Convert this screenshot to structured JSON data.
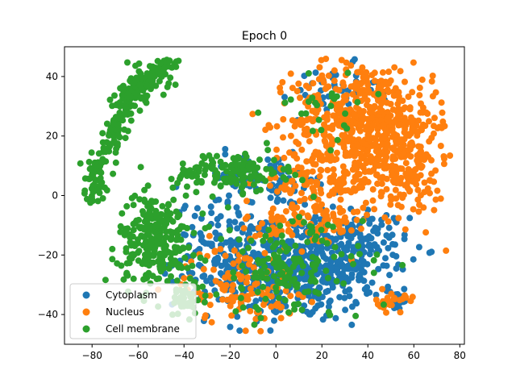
{
  "chart_data": {
    "type": "scatter",
    "title": "Epoch 0",
    "xlabel": "",
    "ylabel": "",
    "xlim": [
      -92,
      82
    ],
    "ylim": [
      -50,
      50
    ],
    "xticks": [
      -80,
      -60,
      -40,
      -20,
      0,
      20,
      40,
      60,
      80
    ],
    "yticks": [
      -40,
      -20,
      0,
      20,
      40
    ],
    "grid": false,
    "legend_position": "lower-left",
    "series": [
      {
        "name": "Cytoplasm",
        "color": "#1f77b4",
        "clusters": [
          {
            "cx": 10,
            "cy": -25,
            "rx": 30,
            "ry": 16,
            "n": 420
          },
          {
            "cx": -20,
            "cy": -20,
            "rx": 22,
            "ry": 16,
            "n": 160
          },
          {
            "cx": 38,
            "cy": -18,
            "rx": 18,
            "ry": 12,
            "n": 120
          },
          {
            "cx": -5,
            "cy": 5,
            "rx": 30,
            "ry": 8,
            "n": 80
          },
          {
            "cx": 25,
            "cy": 35,
            "rx": 18,
            "ry": 8,
            "n": 40
          },
          {
            "cx": 52,
            "cy": -35,
            "rx": 6,
            "ry": 3,
            "n": 25
          }
        ]
      },
      {
        "name": "Nucleus",
        "color": "#ff7f0e",
        "clusters": [
          {
            "cx": 38,
            "cy": 25,
            "rx": 28,
            "ry": 18,
            "n": 560
          },
          {
            "cx": 58,
            "cy": 10,
            "rx": 14,
            "ry": 18,
            "n": 180
          },
          {
            "cx": 20,
            "cy": 5,
            "rx": 22,
            "ry": 10,
            "n": 120
          },
          {
            "cx": -15,
            "cy": -30,
            "rx": 22,
            "ry": 12,
            "n": 120
          },
          {
            "cx": 15,
            "cy": -10,
            "rx": 25,
            "ry": 8,
            "n": 90
          },
          {
            "cx": 50,
            "cy": -36,
            "rx": 6,
            "ry": 3,
            "n": 25
          }
        ]
      },
      {
        "name": "Cell membrane",
        "color": "#2ca02c",
        "clusters": [
          {
            "cx": -52,
            "cy": -15,
            "rx": 15,
            "ry": 14,
            "n": 260
          },
          {
            "cx": -20,
            "cy": 8,
            "rx": 22,
            "ry": 6,
            "n": 140
          },
          {
            "cx": 5,
            "cy": -25,
            "rx": 30,
            "ry": 16,
            "n": 160
          },
          {
            "cx": -38,
            "cy": -35,
            "rx": 8,
            "ry": 5,
            "n": 40
          },
          {
            "cx": 20,
            "cy": 30,
            "rx": 20,
            "ry": 10,
            "n": 25
          }
        ],
        "arm": {
          "x": [
            -80,
            -78,
            -74,
            -70,
            -66,
            -63,
            -60,
            -55,
            -50,
            -45
          ],
          "y": [
            0,
            6,
            14,
            22,
            30,
            35,
            37,
            39,
            42,
            44
          ],
          "spread": 3
        }
      }
    ]
  }
}
